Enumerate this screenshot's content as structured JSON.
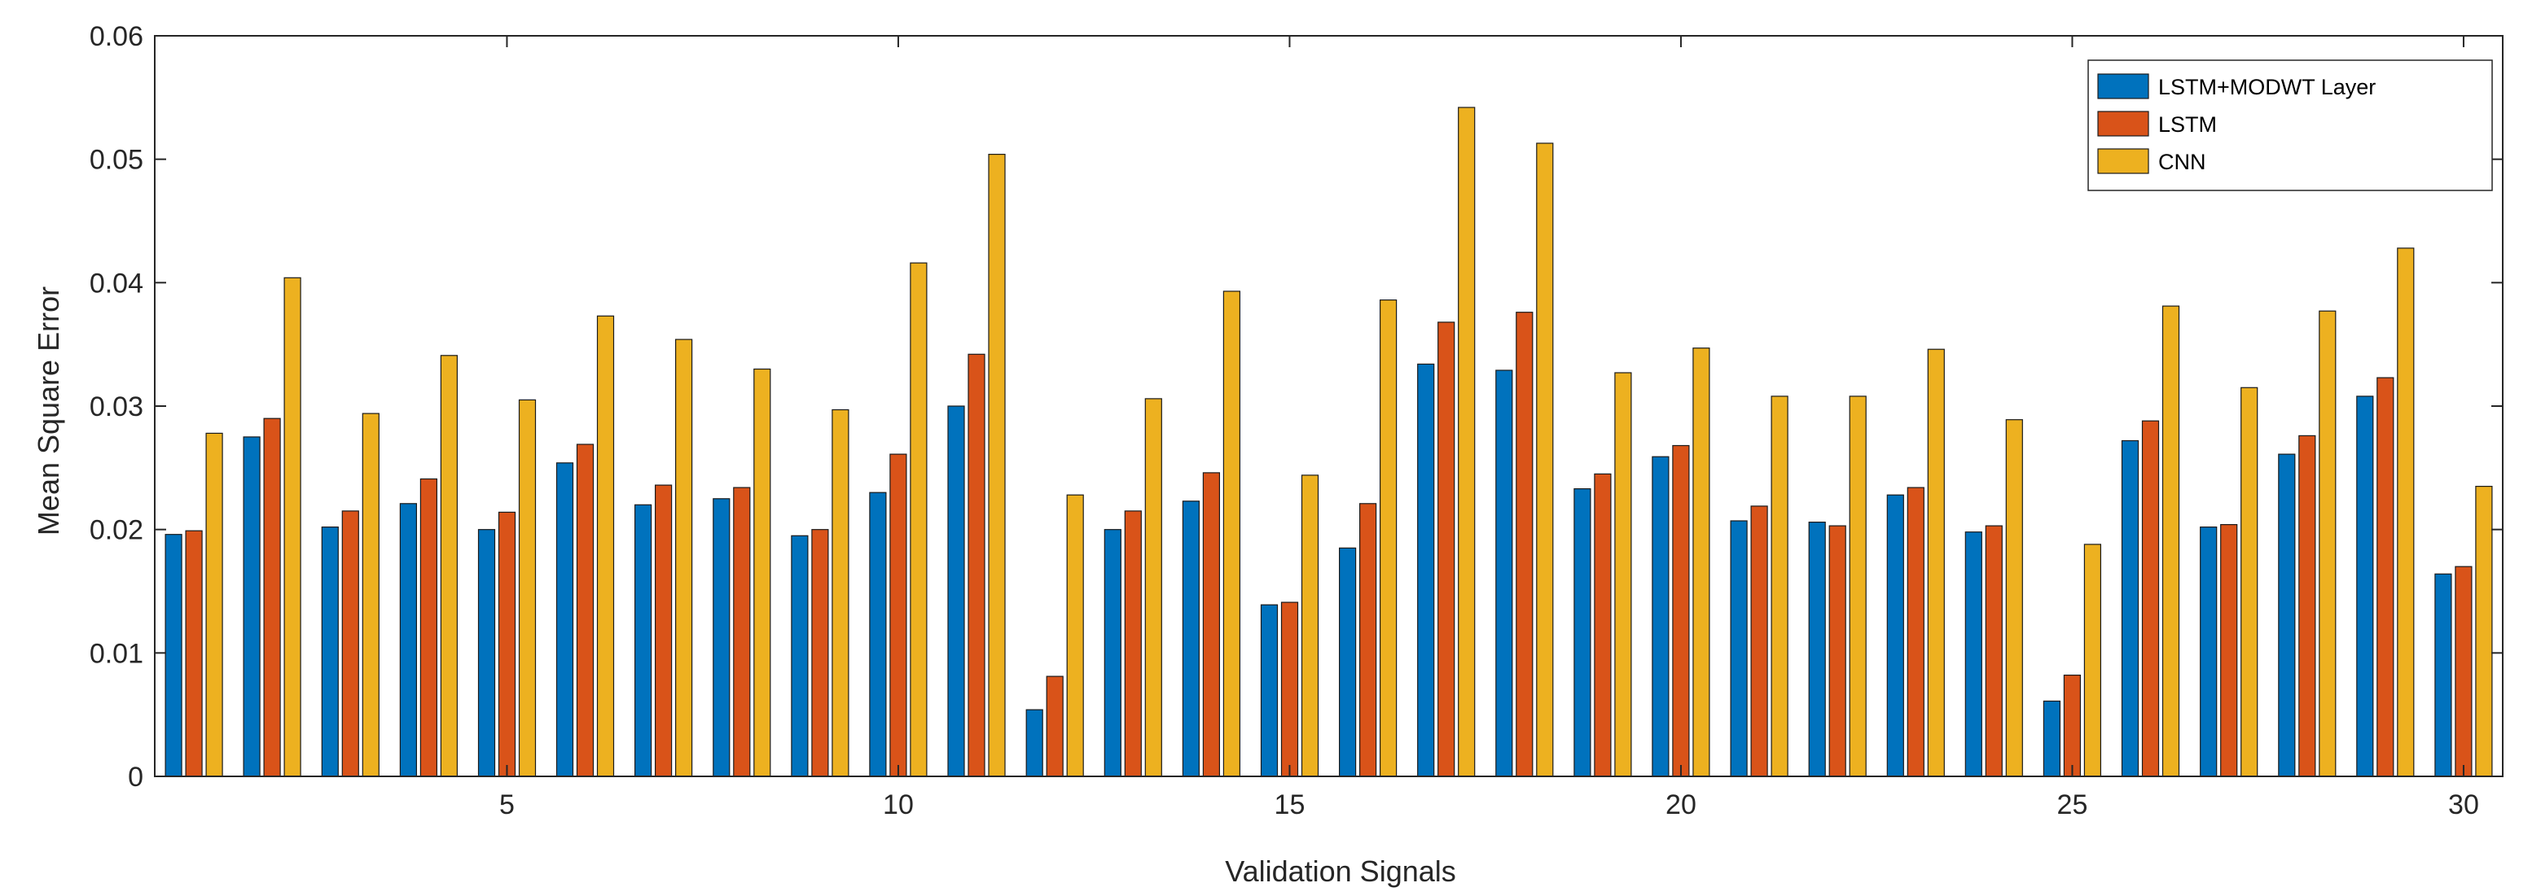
{
  "chart_data": {
    "type": "bar",
    "xlabel": "Validation Signals",
    "ylabel": "Mean Square Error",
    "xlim": [
      0.5,
      30.5
    ],
    "ylim": [
      0,
      0.06
    ],
    "x_ticks": [
      5,
      10,
      15,
      20,
      25,
      30
    ],
    "y_ticks": [
      0,
      0.01,
      0.02,
      0.03,
      0.04,
      0.05,
      0.06
    ],
    "y_tick_labels": [
      "0",
      "0.01",
      "0.02",
      "0.03",
      "0.04",
      "0.05",
      "0.06"
    ],
    "x_tick_labels": [
      "5",
      "10",
      "15",
      "20",
      "25",
      "30"
    ],
    "legend_position": "top-right",
    "grid": false,
    "categories": [
      1,
      2,
      3,
      4,
      5,
      6,
      7,
      8,
      9,
      10,
      11,
      12,
      13,
      14,
      15,
      16,
      17,
      18,
      19,
      20,
      21,
      22,
      23,
      24,
      25,
      26,
      27,
      28,
      29,
      30
    ],
    "series": [
      {
        "name": "LSTM+MODWT Layer",
        "color": "#0072BD",
        "values": [
          0.0196,
          0.0275,
          0.0202,
          0.0221,
          0.02,
          0.0254,
          0.022,
          0.0225,
          0.0195,
          0.023,
          0.03,
          0.0054,
          0.02,
          0.0223,
          0.0139,
          0.0185,
          0.0334,
          0.0329,
          0.0233,
          0.0259,
          0.0207,
          0.0206,
          0.0228,
          0.0198,
          0.0061,
          0.0272,
          0.0202,
          0.0261,
          0.0308,
          0.0164
        ]
      },
      {
        "name": "LSTM",
        "color": "#D95319",
        "values": [
          0.0199,
          0.029,
          0.0215,
          0.0241,
          0.0214,
          0.0269,
          0.0236,
          0.0234,
          0.02,
          0.0261,
          0.0342,
          0.0081,
          0.0215,
          0.0246,
          0.0141,
          0.0221,
          0.0368,
          0.0376,
          0.0245,
          0.0268,
          0.0219,
          0.0203,
          0.0234,
          0.0203,
          0.0082,
          0.0288,
          0.0204,
          0.0276,
          0.0323,
          0.017
        ]
      },
      {
        "name": "CNN",
        "color": "#EDB120",
        "values": [
          0.0278,
          0.0404,
          0.0294,
          0.0341,
          0.0305,
          0.0373,
          0.0354,
          0.033,
          0.0297,
          0.0416,
          0.0504,
          0.0228,
          0.0306,
          0.0393,
          0.0244,
          0.0386,
          0.0542,
          0.0513,
          0.0327,
          0.0347,
          0.0308,
          0.0308,
          0.0346,
          0.0289,
          0.0188,
          0.0381,
          0.0315,
          0.0377,
          0.0428,
          0.0235
        ]
      }
    ]
  }
}
